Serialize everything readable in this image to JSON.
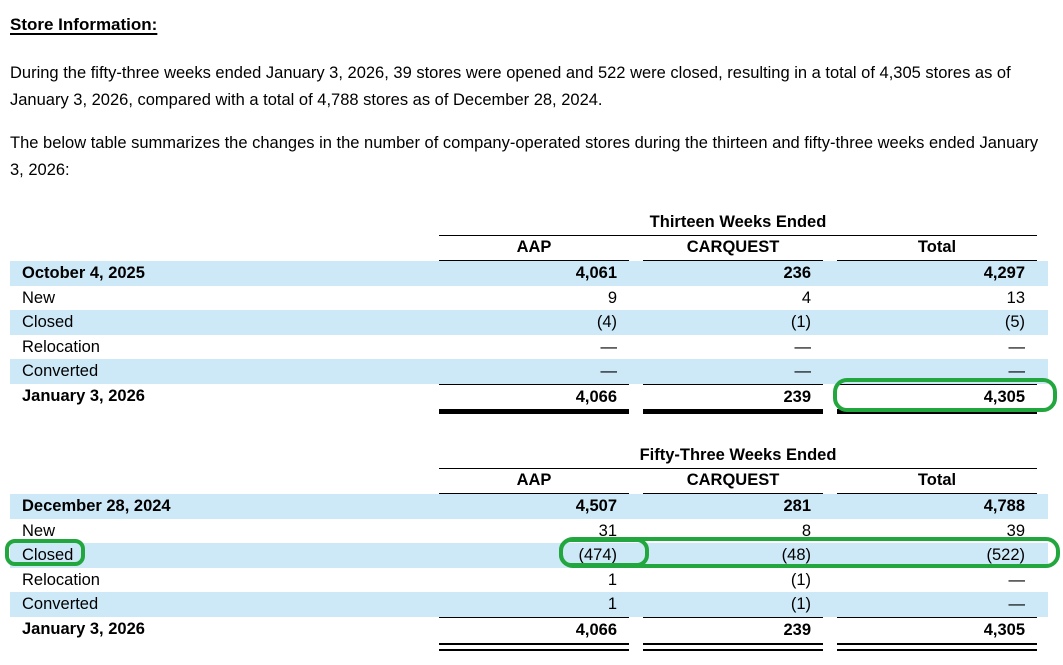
{
  "page": {
    "heading": "Store Information:",
    "paragraph1": "During the fifty-three weeks ended January 3, 2026, 39 stores were opened and 522 were closed, resulting in a total of 4,305 stores as of January 3, 2026, compared with a total of 4,788 stores as of December 28, 2024.",
    "paragraph2": "The below table summarizes the changes in the number of company-operated stores during the thirteen and fifty-three weeks ended January 3, 2026:"
  },
  "colors": {
    "stripe_blue": "#cde9f8",
    "annotation_green": "#22a63e"
  },
  "tables": [
    {
      "period": "Thirteen Weeks Ended",
      "columns": [
        "AAP",
        "CARQUEST",
        "Total"
      ],
      "rows": [
        {
          "label": "October 4, 2025",
          "values": [
            "4,061",
            "236",
            "4,297"
          ]
        },
        {
          "label": "New",
          "values": [
            "9",
            "4",
            "13"
          ]
        },
        {
          "label": "Closed",
          "values": [
            "(4)",
            "(1)",
            "(5)"
          ]
        },
        {
          "label": "Relocation",
          "values": [
            "—",
            "—",
            "—"
          ]
        },
        {
          "label": "Converted",
          "values": [
            "—",
            "—",
            "—"
          ]
        },
        {
          "label": "January 3, 2026",
          "values": [
            "4,066",
            "239",
            "4,305"
          ]
        }
      ]
    },
    {
      "period": "Fifty-Three Weeks Ended",
      "columns": [
        "AAP",
        "CARQUEST",
        "Total"
      ],
      "rows": [
        {
          "label": "December 28, 2024",
          "values": [
            "4,507",
            "281",
            "4,788"
          ]
        },
        {
          "label": "New",
          "values": [
            "31",
            "8",
            "39"
          ]
        },
        {
          "label": "Closed",
          "values": [
            "(474)",
            "(48)",
            "(522)"
          ]
        },
        {
          "label": "Relocation",
          "values": [
            "1",
            "(1)",
            "—"
          ]
        },
        {
          "label": "Converted",
          "values": [
            "1",
            "(1)",
            "—"
          ]
        },
        {
          "label": "January 3, 2026",
          "values": [
            "4,066",
            "239",
            "4,305"
          ]
        }
      ]
    }
  ],
  "annotations": [
    {
      "target": "thirteen-weeks-january-3-2026-total",
      "highlighted_value": "4,305"
    },
    {
      "target": "fifty-three-weeks-closed-row-label",
      "highlighted_value": "Closed"
    },
    {
      "target": "fifty-three-weeks-closed-aap",
      "highlighted_value": "(474)"
    },
    {
      "target": "fifty-three-weeks-closed-row-values",
      "highlighted_value": "(474) (48) (522)"
    }
  ]
}
